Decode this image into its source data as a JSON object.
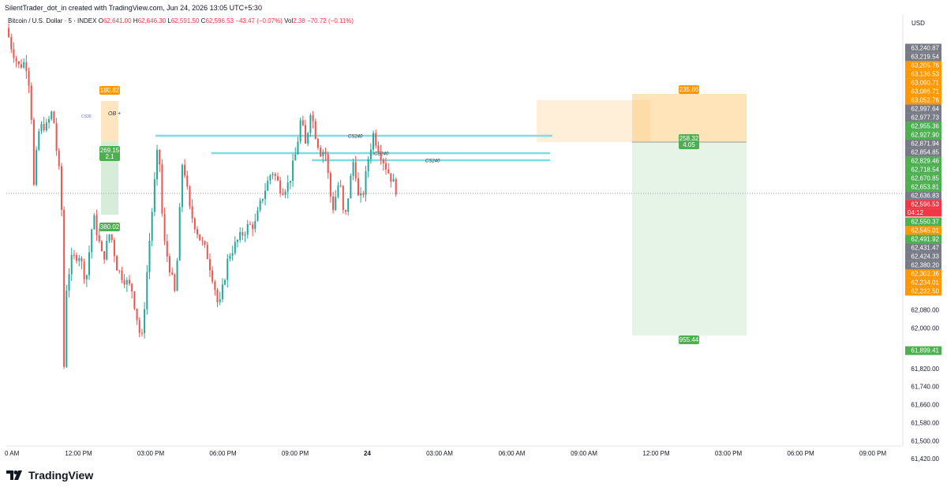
{
  "header": {
    "byline": "SilentTrader_dot_in created with TradingView.com, Jun 24, 2026 13:05 UTC+5:30",
    "symbol": "Bitcoin / U.S. Dollar · 5 · INDEX",
    "open_label": "O",
    "open": "62,641.00",
    "high_label": "H",
    "high": "62,646.30",
    "low_label": "L",
    "low": "62,591.50",
    "close_label": "C",
    "close": "62,596.53",
    "change": "−43.47 (−0.07%)",
    "vol_label": "Vol",
    "vol": "2.38",
    "vol_change": "−70.72 (−0.11%)"
  },
  "footer": {
    "brand": "TradingView"
  },
  "chart_data": {
    "type": "candlestick",
    "currency": "USD",
    "ylim": [
      61380,
      63280
    ],
    "x_ticks": [
      "0 AM",
      "12:00 PM",
      "03:00 PM",
      "06:00 PM",
      "09:00 PM",
      "24",
      "03:00 AM",
      "06:00 AM",
      "09:00 AM",
      "12:00 PM",
      "03:00 PM",
      "06:00 PM",
      "09:00 PM"
    ],
    "y_ticks": [
      "62,080.00",
      "62,000.00",
      "61,820.00",
      "61,740.00",
      "61,660.00",
      "61,580.00",
      "61,500.00",
      "61,420.00"
    ],
    "price_tags": [
      {
        "price": 63240.87,
        "text": "63,240.87",
        "color": "#787b86"
      },
      {
        "price": 63219.54,
        "text": "63,219.54",
        "color": "#787b86"
      },
      {
        "price": 63205.76,
        "text": "63,205.76",
        "color": "#ff9800"
      },
      {
        "price": 63136.53,
        "text": "63,136.53",
        "color": "#ff9800"
      },
      {
        "price": 63090.71,
        "text": "63,090.71",
        "color": "#ff9800"
      },
      {
        "price": 63086.71,
        "text": "63,086.71",
        "color": "#ff9800"
      },
      {
        "price": 63052.76,
        "text": "63,052.76",
        "color": "#ff9800"
      },
      {
        "price": 62997.64,
        "text": "62,997.64",
        "color": "#787b86"
      },
      {
        "price": 62977.73,
        "text": "62,977.73",
        "color": "#787b86"
      },
      {
        "price": 62955.36,
        "text": "62,955.36",
        "color": "#4caf50"
      },
      {
        "price": 62927.9,
        "text": "62,927.90",
        "color": "#4caf50"
      },
      {
        "price": 62871.94,
        "text": "62,871.94",
        "color": "#787b86"
      },
      {
        "price": 62854.85,
        "text": "62,854.85",
        "color": "#787b86"
      },
      {
        "price": 62829.46,
        "text": "62,829.46",
        "color": "#4caf50"
      },
      {
        "price": 62718.54,
        "text": "62,718.54",
        "color": "#4caf50"
      },
      {
        "price": 62670.85,
        "text": "62,670.85",
        "color": "#4caf50"
      },
      {
        "price": 62653.81,
        "text": "62,653.81",
        "color": "#4caf50"
      },
      {
        "price": 62636.83,
        "text": "62,636.83",
        "color": "#787b86"
      },
      {
        "price": 62596.53,
        "text": "62,596.53",
        "color": "#f23645"
      },
      {
        "price": 62550.37,
        "text": "62,550.37",
        "color": "#4caf50"
      },
      {
        "price": 62545.01,
        "text": "62,545.01",
        "color": "#ff9800"
      },
      {
        "price": 62491.92,
        "text": "62,491.92",
        "color": "#4caf50"
      },
      {
        "price": 62431.47,
        "text": "62,431.47",
        "color": "#787b86"
      },
      {
        "price": 62424.33,
        "text": "62,424.33",
        "color": "#787b86"
      },
      {
        "price": 62380.2,
        "text": "62,380.20",
        "color": "#787b86"
      },
      {
        "price": 62302.36,
        "text": "62,302.36",
        "color": "#ff9800"
      },
      {
        "price": 62234.01,
        "text": "62,234.01",
        "color": "#ff9800"
      },
      {
        "price": 62232.5,
        "text": "62,232.50",
        "color": "#ff9800"
      },
      {
        "price": 61899.41,
        "text": "61,899.41",
        "color": "#4caf50"
      }
    ],
    "countdown": "04:12",
    "annotations": {
      "cs_lines": [
        "CS240",
        "CS240",
        "CS240"
      ],
      "cs_small": "CS30",
      "ob": "OB +",
      "left_trade": {
        "risk": "180.82",
        "reward": "380.02",
        "entry": "269.15",
        "ratio": "2.1"
      },
      "right_trade": {
        "risk": "235.86",
        "reward": "955.44",
        "entry": "258.32",
        "ratio": "4.05"
      }
    },
    "series_path": [
      [
        0,
        63330
      ],
      [
        0.2,
        63250
      ],
      [
        0.5,
        63160
      ],
      [
        0.8,
        63180
      ],
      [
        1.0,
        63050
      ],
      [
        1.15,
        62600
      ],
      [
        1.3,
        62860
      ],
      [
        1.5,
        62900
      ],
      [
        1.7,
        62890
      ],
      [
        1.85,
        62960
      ],
      [
        2.0,
        62900
      ],
      [
        2.1,
        62760
      ],
      [
        2.2,
        62680
      ],
      [
        2.3,
        62500
      ],
      [
        2.35,
        62050
      ],
      [
        2.4,
        61780
      ],
      [
        2.5,
        62200
      ],
      [
        2.7,
        62300
      ],
      [
        3.0,
        62330
      ],
      [
        3.3,
        62210
      ],
      [
        3.6,
        62500
      ],
      [
        4.0,
        62300
      ],
      [
        4.3,
        62430
      ],
      [
        4.6,
        62260
      ],
      [
        5.2,
        62170
      ],
      [
        5.6,
        61930
      ],
      [
        5.9,
        62350
      ],
      [
        6.1,
        62600
      ],
      [
        6.3,
        62830
      ],
      [
        6.5,
        62400
      ],
      [
        6.8,
        62250
      ],
      [
        7.0,
        62140
      ],
      [
        7.3,
        62760
      ],
      [
        7.6,
        62520
      ],
      [
        8.0,
        62400
      ],
      [
        8.3,
        62330
      ],
      [
        8.6,
        62200
      ],
      [
        8.8,
        62080
      ],
      [
        9.2,
        62320
      ],
      [
        9.6,
        62390
      ],
      [
        10.0,
        62450
      ],
      [
        10.3,
        62460
      ],
      [
        10.6,
        62580
      ],
      [
        11.0,
        62700
      ],
      [
        11.4,
        62610
      ],
      [
        11.7,
        62640
      ],
      [
        12.0,
        62780
      ],
      [
        12.2,
        62930
      ],
      [
        12.4,
        62800
      ],
      [
        12.6,
        62970
      ],
      [
        12.8,
        62860
      ],
      [
        13.0,
        62780
      ],
      [
        13.2,
        62790
      ],
      [
        13.5,
        62520
      ],
      [
        13.8,
        62660
      ],
      [
        14.0,
        62460
      ],
      [
        14.2,
        62620
      ],
      [
        14.4,
        62760
      ],
      [
        14.6,
        62550
      ],
      [
        14.8,
        62610
      ],
      [
        15.0,
        62760
      ],
      [
        15.2,
        62860
      ],
      [
        15.4,
        62800
      ],
      [
        15.7,
        62720
      ],
      [
        16.0,
        62650
      ],
      [
        16.2,
        62600
      ]
    ],
    "x_origin": 0,
    "current_price": 62596.53
  }
}
